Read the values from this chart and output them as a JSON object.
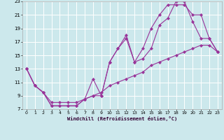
{
  "xlabel": "Windchill (Refroidissement éolien,°C)",
  "ylabel": "",
  "bg_color": "#cce8ec",
  "grid_color": "#ffffff",
  "line_color": "#993399",
  "xlim": [
    -0.5,
    23.5
  ],
  "ylim": [
    7,
    23
  ],
  "xticks": [
    0,
    1,
    2,
    3,
    4,
    5,
    6,
    7,
    8,
    9,
    10,
    11,
    12,
    13,
    14,
    15,
    16,
    17,
    18,
    19,
    20,
    21,
    22,
    23
  ],
  "yticks": [
    7,
    9,
    11,
    13,
    15,
    17,
    19,
    21,
    23
  ],
  "line1_x": [
    0,
    1,
    2,
    3,
    4,
    5,
    6,
    7,
    8,
    9,
    10,
    11,
    12,
    13,
    14,
    15,
    16,
    17,
    18,
    19,
    20,
    21,
    22,
    23
  ],
  "line1_y": [
    13,
    10.5,
    9.5,
    7.5,
    7.5,
    7.5,
    7.5,
    8.5,
    11.5,
    9.0,
    14.0,
    16.0,
    18.0,
    14.0,
    14.5,
    16.0,
    19.5,
    20.5,
    23.0,
    23.0,
    20.0,
    17.5,
    17.5,
    15.5
  ],
  "line2_x": [
    0,
    1,
    2,
    3,
    4,
    5,
    6,
    7,
    8,
    9,
    10,
    11,
    12,
    13,
    14,
    15,
    16,
    17,
    18,
    19,
    20,
    21,
    22,
    23
  ],
  "line2_y": [
    13,
    10.5,
    9.5,
    7.5,
    7.5,
    7.5,
    7.5,
    8.5,
    9.0,
    9.0,
    14.0,
    16.0,
    17.5,
    14.0,
    16.0,
    19.0,
    21.0,
    22.5,
    22.5,
    22.5,
    21.0,
    21.0,
    17.5,
    15.5
  ],
  "line3_x": [
    0,
    1,
    2,
    3,
    4,
    5,
    6,
    7,
    8,
    9,
    10,
    11,
    12,
    13,
    14,
    15,
    16,
    17,
    18,
    19,
    20,
    21,
    22,
    23
  ],
  "line3_y": [
    13,
    10.5,
    9.5,
    8.0,
    8.0,
    8.0,
    8.0,
    8.5,
    9.0,
    9.5,
    10.5,
    11.0,
    11.5,
    12.0,
    12.5,
    13.5,
    14.0,
    14.5,
    15.0,
    15.5,
    16.0,
    16.5,
    16.5,
    15.5
  ]
}
